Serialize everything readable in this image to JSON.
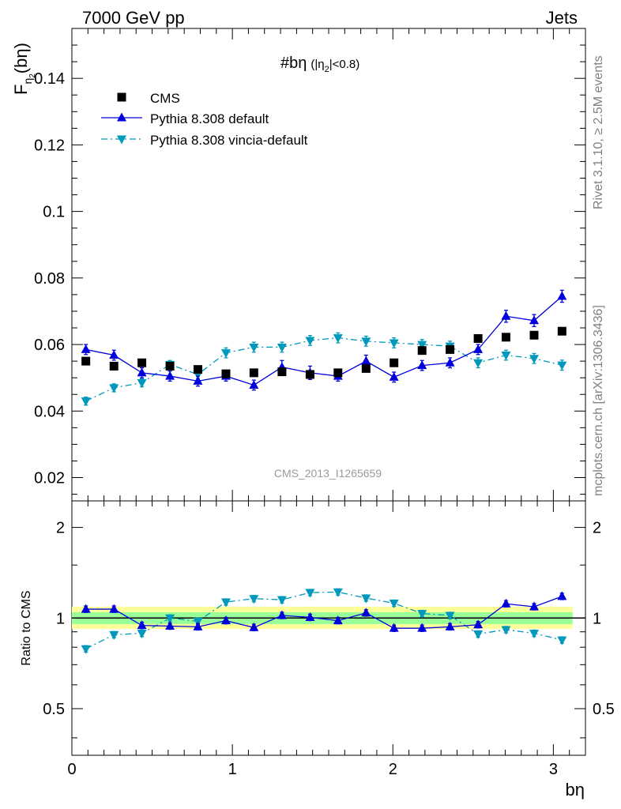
{
  "header": {
    "left": "7000 GeV pp",
    "right": "Jets"
  },
  "side_labels": {
    "rivet": "Rivet 3.1.10, ≥ 2.5M events",
    "mcplots": "mcplots.cern.ch [arXiv:1306.3436]"
  },
  "watermark": "CMS_2013_I1265659",
  "colors": {
    "cms": "#000000",
    "pythia_default": "#0000dd",
    "vincia": "#0099bb",
    "band_inner": "#99ff99",
    "band_outer": "#ffff99"
  },
  "chart_data": [
    {
      "type": "scatter",
      "panel": "main",
      "title": "#bη",
      "title_sub": "(|η",
      "title_sub_index": "2",
      "title_sub_tail": "|<0.8)",
      "ylabel_main": "F",
      "ylabel_sub": "η",
      "ylabel_subsub": "2",
      "ylabel_tail": "(bη)",
      "xlim": [
        0,
        3.2
      ],
      "ylim": [
        0.013,
        0.155
      ],
      "yticks": [
        0.02,
        0.04,
        0.06,
        0.08,
        0.1,
        0.12,
        0.14
      ],
      "yticklabels": [
        "0.02",
        "0.04",
        "0.06",
        "0.08",
        "0.1",
        "0.12",
        "0.14"
      ],
      "legend_position": "top-left",
      "x": [
        0.087,
        0.262,
        0.436,
        0.611,
        0.785,
        0.96,
        1.134,
        1.309,
        1.484,
        1.658,
        1.833,
        2.007,
        2.182,
        2.356,
        2.531,
        2.705,
        2.88,
        3.054
      ],
      "series": [
        {
          "name": "CMS",
          "marker": "square",
          "values": [
            0.055,
            0.0535,
            0.0545,
            0.0535,
            0.0525,
            0.0512,
            0.0515,
            0.0518,
            0.051,
            0.0515,
            0.0528,
            0.0545,
            0.0582,
            0.0585,
            0.0618,
            0.0622,
            0.0628,
            0.064
          ]
        },
        {
          "name": "Pythia 8.308 default",
          "marker": "triangle-up",
          "line": "solid",
          "values": [
            0.0585,
            0.0568,
            0.0515,
            0.0505,
            0.049,
            0.0505,
            0.0478,
            0.0532,
            0.0515,
            0.0505,
            0.055,
            0.0502,
            0.0537,
            0.0545,
            0.0585,
            0.0685,
            0.0672,
            0.0745
          ],
          "errors": [
            0.0015,
            0.0015,
            0.0015,
            0.0015,
            0.0015,
            0.0015,
            0.0015,
            0.002,
            0.002,
            0.0015,
            0.0018,
            0.0015,
            0.0015,
            0.0015,
            0.0015,
            0.0018,
            0.0018,
            0.0018
          ]
        },
        {
          "name": "Pythia 8.308 vincia-default",
          "marker": "triangle-down",
          "line": "dash-dot",
          "values": [
            0.043,
            0.047,
            0.0485,
            0.054,
            0.051,
            0.0575,
            0.0592,
            0.0592,
            0.0612,
            0.062,
            0.061,
            0.0605,
            0.06,
            0.0595,
            0.0545,
            0.0568,
            0.0558,
            0.0538
          ],
          "errors": [
            0.0012,
            0.0012,
            0.0012,
            0.0012,
            0.0012,
            0.0015,
            0.0015,
            0.0015,
            0.0015,
            0.0015,
            0.0015,
            0.0015,
            0.0015,
            0.0015,
            0.0015,
            0.0015,
            0.0015,
            0.0015
          ]
        }
      ]
    },
    {
      "type": "line",
      "panel": "ratio",
      "ylabel": "Ratio to CMS",
      "xlabel": "bη",
      "xlim": [
        0,
        3.2
      ],
      "ylim": [
        0.35,
        2.45
      ],
      "ylog": true,
      "xticks": [
        0,
        1,
        2,
        3
      ],
      "xticklabels": [
        "0",
        "1",
        "2",
        "3"
      ],
      "yticks": [
        0.5,
        1,
        2
      ],
      "yticklabels": [
        "0.5",
        "1",
        "2"
      ],
      "band_inner": [
        0.955,
        1.045
      ],
      "band_outer": [
        0.92,
        1.09
      ],
      "x": [
        0.087,
        0.262,
        0.436,
        0.611,
        0.785,
        0.96,
        1.134,
        1.309,
        1.484,
        1.658,
        1.833,
        2.007,
        2.182,
        2.356,
        2.531,
        2.705,
        2.88,
        3.054
      ],
      "series": [
        {
          "name": "Pythia 8.308 default",
          "values": [
            1.07,
            1.07,
            0.945,
            0.94,
            0.935,
            0.98,
            0.93,
            1.02,
            1.005,
            0.98,
            1.04,
            0.925,
            0.925,
            0.935,
            0.95,
            1.115,
            1.09,
            1.18
          ]
        },
        {
          "name": "Pythia 8.308 vincia-default",
          "values": [
            0.79,
            0.88,
            0.89,
            1.0,
            0.975,
            1.13,
            1.16,
            1.15,
            1.215,
            1.22,
            1.165,
            1.12,
            1.035,
            1.02,
            0.885,
            0.915,
            0.89,
            0.845
          ]
        }
      ]
    }
  ]
}
